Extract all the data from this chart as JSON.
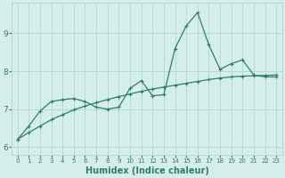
{
  "x": [
    0,
    1,
    2,
    3,
    4,
    5,
    6,
    7,
    8,
    9,
    10,
    11,
    12,
    13,
    14,
    15,
    16,
    17,
    18,
    19,
    20,
    21,
    22,
    23
  ],
  "y_jagged": [
    6.2,
    6.55,
    6.95,
    7.2,
    7.25,
    7.28,
    7.2,
    7.05,
    7.0,
    7.05,
    7.55,
    7.75,
    7.35,
    7.38,
    8.6,
    9.2,
    9.55,
    8.7,
    8.05,
    8.2,
    8.3,
    7.9,
    7.85,
    7.85
  ],
  "y_smooth": [
    6.2,
    6.38,
    6.55,
    6.72,
    6.85,
    6.98,
    7.08,
    7.17,
    7.25,
    7.33,
    7.4,
    7.47,
    7.53,
    7.58,
    7.63,
    7.68,
    7.73,
    7.78,
    7.82,
    7.85,
    7.87,
    7.88,
    7.89,
    7.9
  ],
  "line_color": "#2d7d6e",
  "bg_color": "#d5eeec",
  "grid_color": "#b0d8d4",
  "xlabel": "Humidex (Indice chaleur)",
  "xlabel_fontsize": 7,
  "ylim": [
    5.8,
    9.8
  ],
  "xlim": [
    -0.5,
    23.5
  ],
  "yticks": [
    6,
    7,
    8,
    9
  ],
  "xticks": [
    0,
    1,
    2,
    3,
    4,
    5,
    6,
    7,
    8,
    9,
    10,
    11,
    12,
    13,
    14,
    15,
    16,
    17,
    18,
    19,
    20,
    21,
    22,
    23
  ],
  "markersize": 3.5,
  "linewidth": 0.9
}
